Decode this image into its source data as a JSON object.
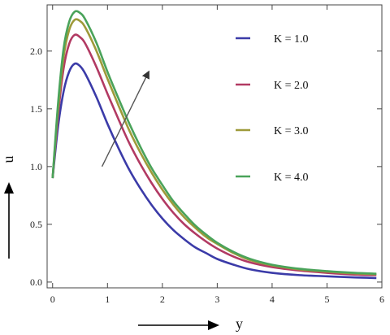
{
  "chart_data": {
    "type": "line",
    "xlabel": "y",
    "ylabel": "u",
    "xlim": [
      -0.1,
      6.0
    ],
    "ylim": [
      -0.05,
      2.4
    ],
    "x_ticks": [
      0,
      1,
      2,
      3,
      4,
      5,
      6
    ],
    "y_ticks": [
      0.0,
      0.5,
      1.0,
      1.5,
      2.0
    ],
    "x_tick_labels": [
      "0",
      "1",
      "2",
      "3",
      "4",
      "5",
      "6"
    ],
    "y_tick_labels": [
      "0.0",
      "0.5",
      "1.0",
      "1.5",
      "2.0"
    ],
    "legend_position": "right",
    "series": [
      {
        "name": "K = 1.0",
        "color": "#3b3ba8",
        "x": [
          0,
          0.1,
          0.2,
          0.3,
          0.4,
          0.5,
          0.6,
          0.8,
          1.0,
          1.2,
          1.4,
          1.6,
          1.8,
          2.0,
          2.2,
          2.4,
          2.6,
          2.8,
          3.0,
          3.3,
          3.6,
          4.0,
          4.5,
          5.0,
          5.5,
          5.9
        ],
        "y": [
          0.9,
          1.35,
          1.65,
          1.82,
          1.89,
          1.87,
          1.8,
          1.6,
          1.37,
          1.16,
          0.97,
          0.81,
          0.67,
          0.55,
          0.45,
          0.37,
          0.3,
          0.25,
          0.2,
          0.15,
          0.11,
          0.08,
          0.06,
          0.05,
          0.04,
          0.035
        ]
      },
      {
        "name": "K = 2.0",
        "color": "#b23a63",
        "x": [
          0,
          0.1,
          0.2,
          0.3,
          0.4,
          0.5,
          0.6,
          0.8,
          1.0,
          1.2,
          1.4,
          1.6,
          1.8,
          2.0,
          2.2,
          2.4,
          2.6,
          2.8,
          3.0,
          3.3,
          3.6,
          4.0,
          4.5,
          5.0,
          5.5,
          5.9
        ],
        "y": [
          0.9,
          1.45,
          1.85,
          2.06,
          2.14,
          2.12,
          2.06,
          1.86,
          1.63,
          1.41,
          1.2,
          1.02,
          0.86,
          0.72,
          0.6,
          0.5,
          0.42,
          0.35,
          0.29,
          0.22,
          0.17,
          0.13,
          0.1,
          0.08,
          0.065,
          0.06
        ]
      },
      {
        "name": "K = 3.0",
        "color": "#9e9a3a",
        "x": [
          0,
          0.1,
          0.2,
          0.3,
          0.4,
          0.5,
          0.6,
          0.8,
          1.0,
          1.2,
          1.4,
          1.6,
          1.8,
          2.0,
          2.2,
          2.4,
          2.6,
          2.8,
          3.0,
          3.3,
          3.6,
          4.0,
          4.5,
          5.0,
          5.5,
          5.9
        ],
        "y": [
          0.9,
          1.5,
          1.95,
          2.18,
          2.27,
          2.26,
          2.2,
          2.0,
          1.76,
          1.53,
          1.31,
          1.12,
          0.95,
          0.8,
          0.67,
          0.56,
          0.47,
          0.39,
          0.33,
          0.25,
          0.19,
          0.145,
          0.11,
          0.09,
          0.075,
          0.068
        ]
      },
      {
        "name": "K = 4.0",
        "color": "#4aa35a",
        "x": [
          0,
          0.1,
          0.2,
          0.3,
          0.4,
          0.5,
          0.6,
          0.8,
          1.0,
          1.2,
          1.4,
          1.6,
          1.8,
          2.0,
          2.2,
          2.4,
          2.6,
          2.8,
          3.0,
          3.3,
          3.6,
          4.0,
          4.5,
          5.0,
          5.5,
          5.9
        ],
        "y": [
          0.9,
          1.55,
          2.02,
          2.25,
          2.34,
          2.33,
          2.27,
          2.07,
          1.82,
          1.59,
          1.37,
          1.17,
          0.99,
          0.84,
          0.7,
          0.59,
          0.49,
          0.41,
          0.34,
          0.26,
          0.2,
          0.15,
          0.115,
          0.095,
          0.08,
          0.072
        ]
      }
    ],
    "annotations": {
      "trend_arrow": {
        "from": [
          0.9,
          1.0
        ],
        "to": [
          1.75,
          1.82
        ],
        "color": "#555555"
      }
    }
  }
}
